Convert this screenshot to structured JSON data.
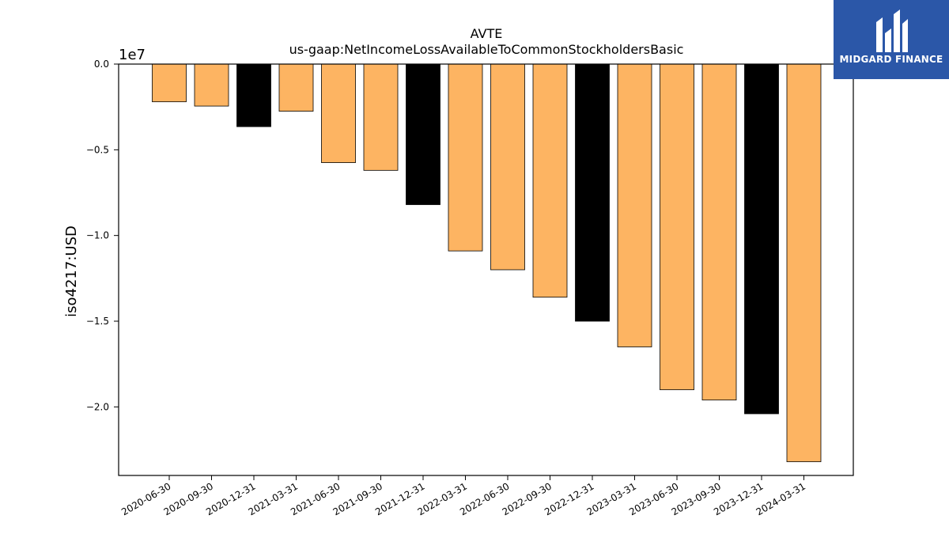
{
  "chart_data": {
    "type": "bar",
    "title": "AVTE",
    "subtitle": "us-gaap:NetIncomeLossAvailableToCommonStockholdersBasic",
    "ylabel": "iso4217:USD",
    "xlabel": "",
    "scale_label": "1e7",
    "y_scale": 10000000,
    "ylim": [
      -24000000,
      0
    ],
    "yticks": [
      0,
      -5000000,
      -10000000,
      -15000000,
      -20000000
    ],
    "ytick_labels": [
      "0.0",
      "−0.5",
      "−1.0",
      "−1.5",
      "−2.0"
    ],
    "categories": [
      "2020-06-30",
      "2020-09-30",
      "2020-12-31",
      "2021-03-31",
      "2021-06-30",
      "2021-09-30",
      "2021-12-31",
      "2022-03-31",
      "2022-06-30",
      "2022-09-30",
      "2022-12-31",
      "2023-03-31",
      "2023-06-30",
      "2023-09-30",
      "2023-12-31",
      "2024-03-31"
    ],
    "values": [
      -2200000,
      -2450000,
      -3650000,
      -2750000,
      -5750000,
      -6200000,
      -8200000,
      -10900000,
      -12000000,
      -13600000,
      -15000000,
      -16500000,
      -19000000,
      -19600000,
      -20400000,
      -23200000
    ],
    "highlight": [
      false,
      false,
      true,
      false,
      false,
      false,
      true,
      false,
      false,
      false,
      true,
      false,
      false,
      false,
      true,
      false
    ],
    "colors": {
      "bar": "#fdb462",
      "highlight": "#000000",
      "edge": "#000000"
    },
    "grid": false,
    "legend": "none"
  },
  "logo": {
    "text": "MIDGARD FINANCE",
    "color": "#2b57a8"
  }
}
